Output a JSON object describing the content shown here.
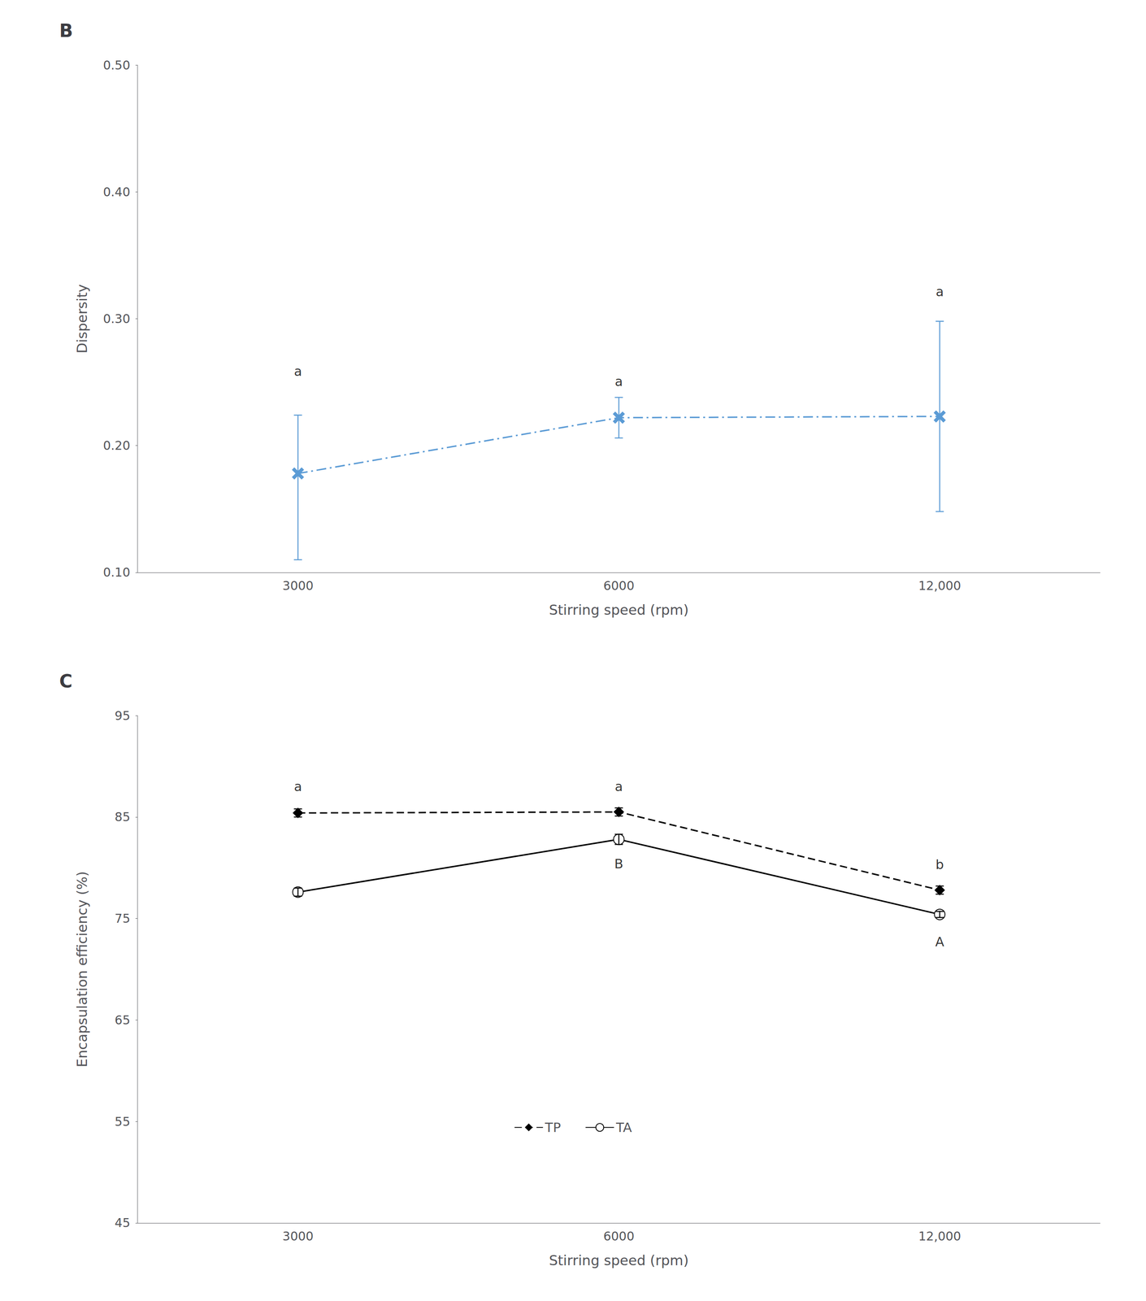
{
  "chart_data": [
    {
      "type": "line",
      "title": "B",
      "xlabel": "Stirring speed (rpm)",
      "ylabel": "Dispersity",
      "categories": [
        "3000",
        "6000",
        "12,000"
      ],
      "values": [
        0.178,
        0.222,
        0.223
      ],
      "yerr_upper": [
        0.046,
        0.016,
        0.075
      ],
      "yerr_lower": [
        0.068,
        0.016,
        0.075
      ],
      "color": "#5B9BD5",
      "marker": "x",
      "line_style": "dashdot",
      "annotations": [
        {
          "text": "a",
          "x": "3000",
          "y": 0.252
        },
        {
          "text": "a",
          "x": "6000",
          "y": 0.244
        },
        {
          "text": "a",
          "x": "12,000",
          "y": 0.315
        }
      ],
      "ylim": [
        0.1,
        0.5
      ],
      "yticks": [
        {
          "value": 0.1,
          "label": "0.10"
        },
        {
          "value": 0.2,
          "label": "0.20"
        },
        {
          "value": 0.3,
          "label": "0.30"
        },
        {
          "value": 0.4,
          "label": "0.40"
        },
        {
          "value": 0.5,
          "label": "0.50"
        }
      ],
      "grid": false
    },
    {
      "type": "line",
      "title": "C",
      "xlabel": "Stirring speed (rpm)",
      "ylabel": "Encapsulation efficiency (%)",
      "categories": [
        "3000",
        "6000",
        "12,000"
      ],
      "series": [
        {
          "name": "TP",
          "color": "#000000",
          "marker": "diamond",
          "line_style": "dashed",
          "values": [
            85.4,
            85.5,
            77.8
          ],
          "yerr_upper": [
            0.4,
            0.4,
            0.4
          ],
          "yerr_lower": [
            0.4,
            0.4,
            0.4
          ],
          "annotations": [
            {
              "text": "a",
              "x": "3000",
              "y": 87.2
            },
            {
              "text": "a",
              "x": "6000",
              "y": 87.2
            },
            {
              "text": "b",
              "x": "12,000",
              "y": 79.5
            }
          ]
        },
        {
          "name": "TA",
          "color": "#000000",
          "marker": "open_circle",
          "line_style": "solid",
          "values": [
            77.6,
            82.8,
            75.4
          ],
          "yerr_upper": [
            0.4,
            0.5,
            0.3
          ],
          "yerr_lower": [
            0.4,
            0.5,
            0.3
          ],
          "annotations": [
            {
              "text": "B",
              "x": "6000",
              "y": 81.2
            },
            {
              "text": "A",
              "x": "12,000",
              "y": 73.5
            }
          ]
        }
      ],
      "ylim": [
        45,
        95
      ],
      "yticks": [
        45,
        55,
        65,
        75,
        85,
        95
      ],
      "grid": false,
      "legend": "bottom"
    }
  ]
}
